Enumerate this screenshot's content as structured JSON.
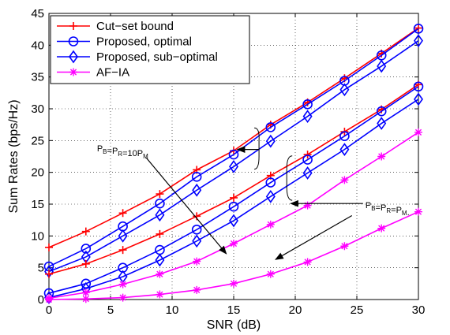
{
  "chart_data": {
    "type": "line",
    "title": "",
    "xlabel": "SNR (dB)",
    "ylabel": "Sum Rates (bps/Hz)",
    "xlim": [
      0,
      30
    ],
    "ylim": [
      0,
      45
    ],
    "xticks": [
      0,
      5,
      10,
      15,
      20,
      25,
      30
    ],
    "yticks": [
      0,
      5,
      10,
      15,
      20,
      25,
      30,
      35,
      40,
      45
    ],
    "grid": true,
    "legend_position": "top-left",
    "x": [
      0,
      3,
      6,
      9,
      12,
      15,
      18,
      21,
      24,
      27,
      30
    ],
    "series": [
      {
        "name": "Cut−set bound",
        "group": "P_B=P_R=10P_M",
        "color": "#ff0000",
        "marker": "plus",
        "values": [
          8.2,
          10.7,
          13.6,
          16.6,
          20.4,
          23.4,
          27.5,
          31.0,
          34.8,
          38.7,
          42.7
        ]
      },
      {
        "name": "Proposed, optimal",
        "group": "P_B=P_R=10P_M",
        "color": "#0000ff",
        "marker": "circle",
        "values": [
          5.2,
          8.0,
          11.5,
          15.1,
          19.3,
          22.8,
          27.1,
          30.7,
          34.4,
          38.4,
          42.6
        ]
      },
      {
        "name": "Proposed, sub−optimal",
        "group": "P_B=P_R=10P_M",
        "color": "#0000ff",
        "marker": "diamond",
        "values": [
          4.4,
          6.7,
          10.0,
          13.3,
          17.2,
          20.9,
          24.9,
          28.8,
          33.0,
          36.7,
          40.7
        ]
      },
      {
        "name": "Cut−set bound",
        "group": "P_B=P_R=P_M",
        "color": "#ff0000",
        "marker": "plus",
        "values": [
          4.0,
          5.6,
          7.8,
          10.3,
          13.1,
          16.0,
          19.5,
          22.8,
          26.4,
          29.9,
          33.8
        ]
      },
      {
        "name": "Proposed, optimal",
        "group": "P_B=P_R=P_M",
        "color": "#0000ff",
        "marker": "circle",
        "values": [
          1.0,
          2.5,
          5.0,
          7.8,
          11.0,
          14.6,
          18.4,
          22.0,
          25.7,
          29.6,
          33.5
        ]
      },
      {
        "name": "Proposed, sub−optimal",
        "group": "P_B=P_R=P_M",
        "color": "#0000ff",
        "marker": "diamond",
        "values": [
          0.3,
          1.7,
          3.6,
          6.2,
          9.2,
          12.4,
          16.2,
          19.9,
          23.6,
          27.7,
          31.5
        ]
      },
      {
        "name": "AF−IA",
        "group": "P_B=P_R=10P_M",
        "color": "#ff00ff",
        "marker": "star",
        "values": [
          0.2,
          1.1,
          2.4,
          4.0,
          6.0,
          8.8,
          11.8,
          14.8,
          18.8,
          22.5,
          26.3
        ]
      },
      {
        "name": "AF−IA",
        "group": "P_B=P_R=P_M",
        "color": "#ff00ff",
        "marker": "star",
        "values": [
          0.0,
          0.1,
          0.3,
          0.8,
          1.5,
          2.5,
          4.0,
          5.9,
          8.4,
          11.2,
          13.8
        ]
      }
    ],
    "legend": [
      {
        "label": "Cut−set bound",
        "color": "#ff0000",
        "marker": "plus"
      },
      {
        "label": "Proposed, optimal",
        "color": "#0000ff",
        "marker": "circle"
      },
      {
        "label": "Proposed, sub−optimal",
        "color": "#0000ff",
        "marker": "diamond"
      },
      {
        "label": "AF−IA",
        "color": "#ff00ff",
        "marker": "star"
      }
    ],
    "annotations": [
      {
        "id": "high",
        "base": [
          "P",
          "=P",
          "=10P"
        ],
        "subs": [
          "B",
          "R",
          "M"
        ]
      },
      {
        "id": "low",
        "base": [
          "P",
          "=P",
          "=P",
          "."
        ],
        "subs": [
          "B",
          "R",
          "M"
        ]
      }
    ]
  }
}
